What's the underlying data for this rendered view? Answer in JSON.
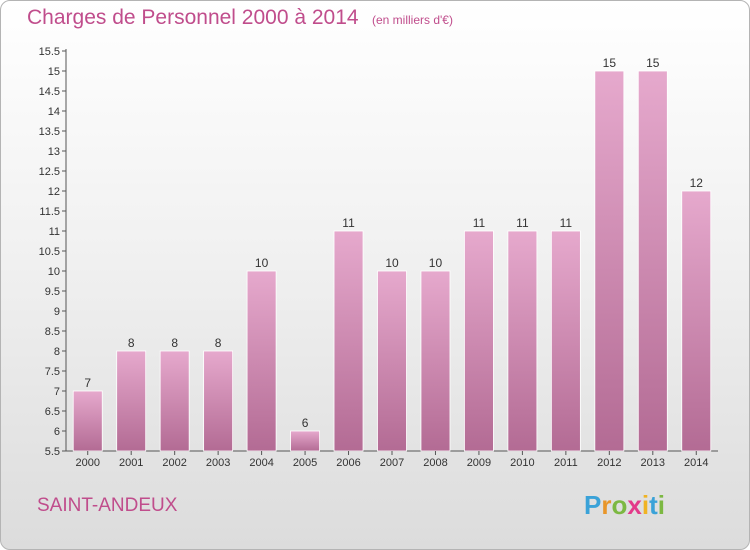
{
  "chart_data": {
    "type": "bar",
    "title": "Charges de Personnel 2000 à 2014",
    "subtitle": "(en milliers d'€)",
    "categories": [
      "2000",
      "2001",
      "2002",
      "2003",
      "2004",
      "2005",
      "2006",
      "2007",
      "2008",
      "2009",
      "2010",
      "2011",
      "2012",
      "2013",
      "2014"
    ],
    "values": [
      7,
      8,
      8,
      8,
      10,
      6,
      11,
      10,
      10,
      11,
      11,
      11,
      15,
      15,
      12
    ],
    "value_labels": [
      "7",
      "8",
      "8",
      "8",
      "10",
      "6",
      "11",
      "10",
      "10",
      "11",
      "11",
      "11",
      "15",
      "15",
      "12"
    ],
    "ylim": [
      5.5,
      15.5
    ],
    "yticks": [
      "5.5",
      "6",
      "6.5",
      "7",
      "7.5",
      "8",
      "8.5",
      "9",
      "9.5",
      "10",
      "10.5",
      "11",
      "11.5",
      "12",
      "12.5",
      "13",
      "13.5",
      "14",
      "14.5",
      "15",
      "15.5"
    ],
    "xlabel": "",
    "ylabel": "",
    "grid": false,
    "bar_color": "#d995bb",
    "bar_gradient": [
      "#e6a9cd",
      "#b36b94"
    ]
  },
  "footer": {
    "place": "SAINT-ANDEUX",
    "logo_letters": [
      {
        "char": "P",
        "color": "#3aa2d8"
      },
      {
        "char": "r",
        "color": "#e8962a"
      },
      {
        "char": "o",
        "color": "#7cb842"
      },
      {
        "char": "x",
        "color": "#e33a8a"
      },
      {
        "char": "i",
        "color": "#f0b323"
      },
      {
        "char": "t",
        "color": "#3aa2d8"
      },
      {
        "char": "i",
        "color": "#7cb842"
      }
    ]
  }
}
